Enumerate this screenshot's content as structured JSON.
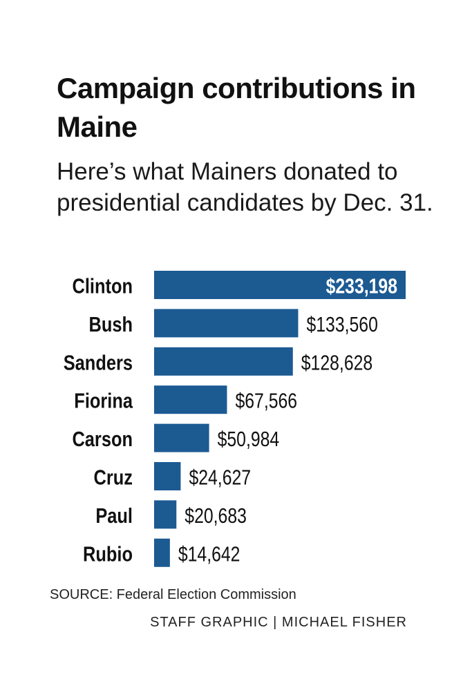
{
  "chart_data": {
    "type": "bar",
    "orientation": "horizontal",
    "title": "Campaign contributions in Maine",
    "subtitle": "Here’s what Mainers donated to presidential candidates by Dec. 31.",
    "categories": [
      "Clinton",
      "Bush",
      "Sanders",
      "Fiorina",
      "Carson",
      "Cruz",
      "Paul",
      "Rubio"
    ],
    "values": [
      233198,
      133560,
      128628,
      67566,
      50984,
      24627,
      20683,
      14642
    ],
    "value_labels": [
      "$233,198",
      "$133,560",
      "$128,628",
      "$67,566",
      "$50,984",
      "$24,627",
      "$20,683",
      "$14,642"
    ],
    "xlim": [
      0,
      233198
    ],
    "bar_color": "#1c5a92",
    "inside_label_color": "#ffffff",
    "outside_label_color": "#111111"
  },
  "footer": {
    "source": "SOURCE: Federal Election Commission",
    "credit": "STAFF GRAPHIC | MICHAEL FISHER"
  }
}
